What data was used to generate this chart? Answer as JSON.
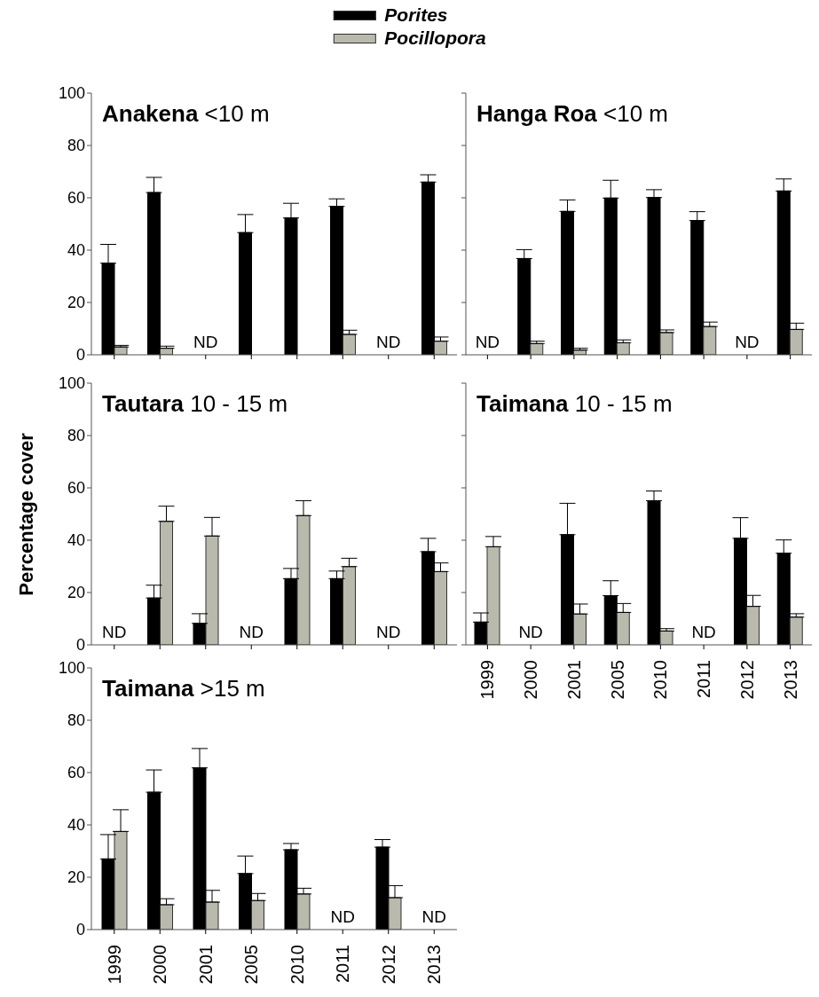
{
  "chart_data": [
    {
      "type": "bar",
      "title": "Anakena <10 m",
      "categories": [
        "1999",
        "2000",
        "2001",
        "2005",
        "2010",
        "2011",
        "2012",
        "2013"
      ],
      "series": [
        {
          "name": "Porites",
          "color": "#000000",
          "values": [
            35,
            62,
            null,
            46.7,
            52.3,
            56.7,
            null,
            66
          ],
          "errors": [
            [
              35,
              42.2
            ],
            [
              62,
              67.8
            ],
            null,
            [
              46.7,
              53.6
            ],
            [
              52.3,
              57.9
            ],
            [
              56.7,
              59.6
            ],
            null,
            [
              66,
              68.8
            ]
          ]
        },
        {
          "name": "Pocillopora",
          "color": "#b9b9ad",
          "values": [
            3,
            2.5,
            null,
            0,
            0,
            7.8,
            null,
            5.2
          ],
          "errors": [
            [
              3,
              3.6
            ],
            [
              2.5,
              3.3
            ],
            null,
            null,
            null,
            [
              7.8,
              9.4
            ],
            null,
            [
              5.2,
              6.8
            ]
          ]
        }
      ],
      "ylim": [
        0,
        100
      ],
      "yticks": [
        0,
        20,
        40,
        60,
        80,
        100
      ],
      "legend": "top",
      "tick_labels": "y",
      "annotations": [
        "ND",
        "ND"
      ]
    },
    {
      "type": "bar",
      "title": "Hanga Roa <10 m",
      "categories": [
        "1999",
        "2000",
        "2001",
        "2005",
        "2010",
        "2011",
        "2012",
        "2013"
      ],
      "series": [
        {
          "color": "#000000",
          "values": [
            null,
            36.8,
            54.8,
            59.9,
            60.1,
            51.3,
            null,
            62.6
          ],
          "errors": [
            null,
            [
              36.8,
              40.2
            ],
            [
              54.8,
              59.2
            ],
            [
              59.9,
              66.7
            ],
            [
              60.1,
              63.1
            ],
            [
              51.3,
              54.7
            ],
            null,
            [
              62.6,
              67.2
            ]
          ]
        },
        {
          "color": "#b9b9ad",
          "values": [
            null,
            4.3,
            1.8,
            4.6,
            8.5,
            10.8,
            null,
            9.7
          ],
          "errors": [
            null,
            [
              4.3,
              5.2
            ],
            [
              1.8,
              2.5
            ],
            [
              4.6,
              5.7
            ],
            [
              8.5,
              9.5
            ],
            [
              10.8,
              12.5
            ],
            null,
            [
              9.7,
              12.1
            ]
          ]
        }
      ],
      "ylim": [
        0,
        100
      ],
      "yticks": [
        0,
        20,
        40,
        60,
        80,
        100
      ],
      "tick_labels": false,
      "annotations": [
        "ND",
        "ND"
      ]
    },
    {
      "type": "bar",
      "title": "Tautara 10 - 15 m",
      "ylabel": "Percentage cover",
      "categories": [
        "1999",
        "2000",
        "2001",
        "2005",
        "2010",
        "2011",
        "2012",
        "2013"
      ],
      "series": [
        {
          "color": "#000000",
          "values": [
            null,
            17.9,
            8.2,
            null,
            25.3,
            25.3,
            null,
            35.6
          ],
          "errors": [
            null,
            [
              17.9,
              22.8
            ],
            [
              8.2,
              11.9
            ],
            null,
            [
              25.3,
              29.2
            ],
            [
              25.3,
              28.2
            ],
            null,
            [
              35.6,
              40.7
            ]
          ]
        },
        {
          "color": "#b9b9ad",
          "values": [
            null,
            47.2,
            41.6,
            null,
            49.4,
            29.9,
            null,
            28
          ],
          "errors": [
            null,
            [
              47.2,
              53
            ],
            [
              41.6,
              48.7
            ],
            null,
            [
              49.4,
              55.1
            ],
            [
              29.9,
              33.1
            ],
            null,
            [
              28,
              31.3
            ]
          ]
        }
      ],
      "ylim": [
        0,
        100
      ],
      "yticks": [
        0,
        20,
        40,
        60,
        80,
        100
      ],
      "tick_labels": "y",
      "annotations": [
        "ND",
        "ND",
        "ND"
      ]
    },
    {
      "type": "bar",
      "title": "Taimana 10 - 15 m",
      "categories": [
        "1999",
        "2000",
        "2001",
        "2005",
        "2010",
        "2011",
        "2012",
        "2013"
      ],
      "series": [
        {
          "color": "#000000",
          "values": [
            8.7,
            null,
            42.1,
            18.8,
            55.1,
            null,
            40.7,
            35
          ],
          "errors": [
            [
              8.7,
              12.2
            ],
            null,
            [
              42.1,
              54.1
            ],
            [
              18.8,
              24.5
            ],
            [
              55.1,
              58.8
            ],
            null,
            [
              40.7,
              48.6
            ],
            [
              35,
              40.1
            ]
          ]
        },
        {
          "color": "#b9b9ad",
          "values": [
            37.5,
            null,
            11.8,
            12.4,
            5.3,
            null,
            14.7,
            10.6
          ],
          "errors": [
            [
              37.5,
              41.4
            ],
            null,
            [
              11.8,
              15.6
            ],
            [
              12.4,
              15.8
            ],
            [
              5.3,
              6.2
            ],
            null,
            [
              14.7,
              18.9
            ],
            [
              10.6,
              11.9
            ]
          ]
        }
      ],
      "ylim": [
        0,
        100
      ],
      "yticks": [
        0,
        20,
        40,
        60,
        80,
        100
      ],
      "tick_labels": "x",
      "annotations": [
        "ND",
        "ND"
      ]
    },
    {
      "type": "bar",
      "title": "Taimana >15 m",
      "categories": [
        "1999",
        "2000",
        "2001",
        "2005",
        "2010",
        "2011",
        "2012",
        "2013"
      ],
      "series": [
        {
          "color": "#000000",
          "values": [
            27,
            52.5,
            61.8,
            21.4,
            30.5,
            null,
            31.5,
            null
          ],
          "errors": [
            [
              27,
              36.3
            ],
            [
              52.5,
              61
            ],
            [
              61.8,
              69.2
            ],
            [
              21.4,
              28.1
            ],
            [
              30.5,
              32.9
            ],
            null,
            [
              31.5,
              34.4
            ],
            null
          ]
        },
        {
          "color": "#b9b9ad",
          "values": [
            37.5,
            9.5,
            10.5,
            11.1,
            13.6,
            null,
            12.2,
            null
          ],
          "errors": [
            [
              37.5,
              45.8
            ],
            [
              9.5,
              11.8
            ],
            [
              10.5,
              15
            ],
            [
              11.1,
              13.8
            ],
            [
              13.6,
              15.8
            ],
            null,
            [
              12.2,
              16.8
            ],
            null
          ]
        }
      ],
      "ylim": [
        0,
        100
      ],
      "yticks": [
        0,
        20,
        40,
        60,
        80,
        100
      ],
      "annotations": [
        "ND",
        "ND"
      ]
    }
  ]
}
